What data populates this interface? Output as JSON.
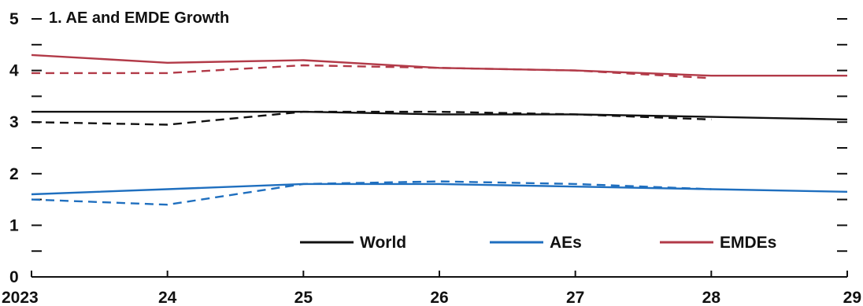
{
  "chart_data": {
    "type": "line",
    "title": "1. AE and EMDE Growth",
    "x": [
      "2023",
      "24",
      "25",
      "26",
      "27",
      "28",
      "29"
    ],
    "ylim": [
      0,
      5
    ],
    "yticks": [
      "0",
      "1",
      "2",
      "3",
      "4",
      "5"
    ],
    "grid": false,
    "legend_position": "bottom-right",
    "series": [
      {
        "name": "World",
        "color": "#111111",
        "dash": false,
        "values": [
          3.2,
          3.2,
          3.2,
          3.15,
          3.15,
          3.1,
          3.05
        ]
      },
      {
        "color": "#111111",
        "dash": true,
        "values": [
          3.0,
          2.95,
          3.2,
          3.2,
          3.15,
          3.05,
          null
        ]
      },
      {
        "name": "AEs",
        "color": "#1f6fbf",
        "dash": false,
        "values": [
          1.6,
          1.7,
          1.8,
          1.8,
          1.75,
          1.7,
          1.65
        ]
      },
      {
        "color": "#1f6fbf",
        "dash": true,
        "values": [
          1.5,
          1.4,
          1.8,
          1.85,
          1.8,
          1.7,
          null
        ]
      },
      {
        "name": "EMDEs",
        "color": "#b23a48",
        "dash": false,
        "values": [
          4.3,
          4.15,
          4.2,
          4.05,
          4.0,
          3.9,
          3.9
        ]
      },
      {
        "color": "#b23a48",
        "dash": true,
        "values": [
          3.95,
          3.95,
          4.1,
          4.05,
          4.0,
          3.85,
          null
        ]
      }
    ]
  }
}
